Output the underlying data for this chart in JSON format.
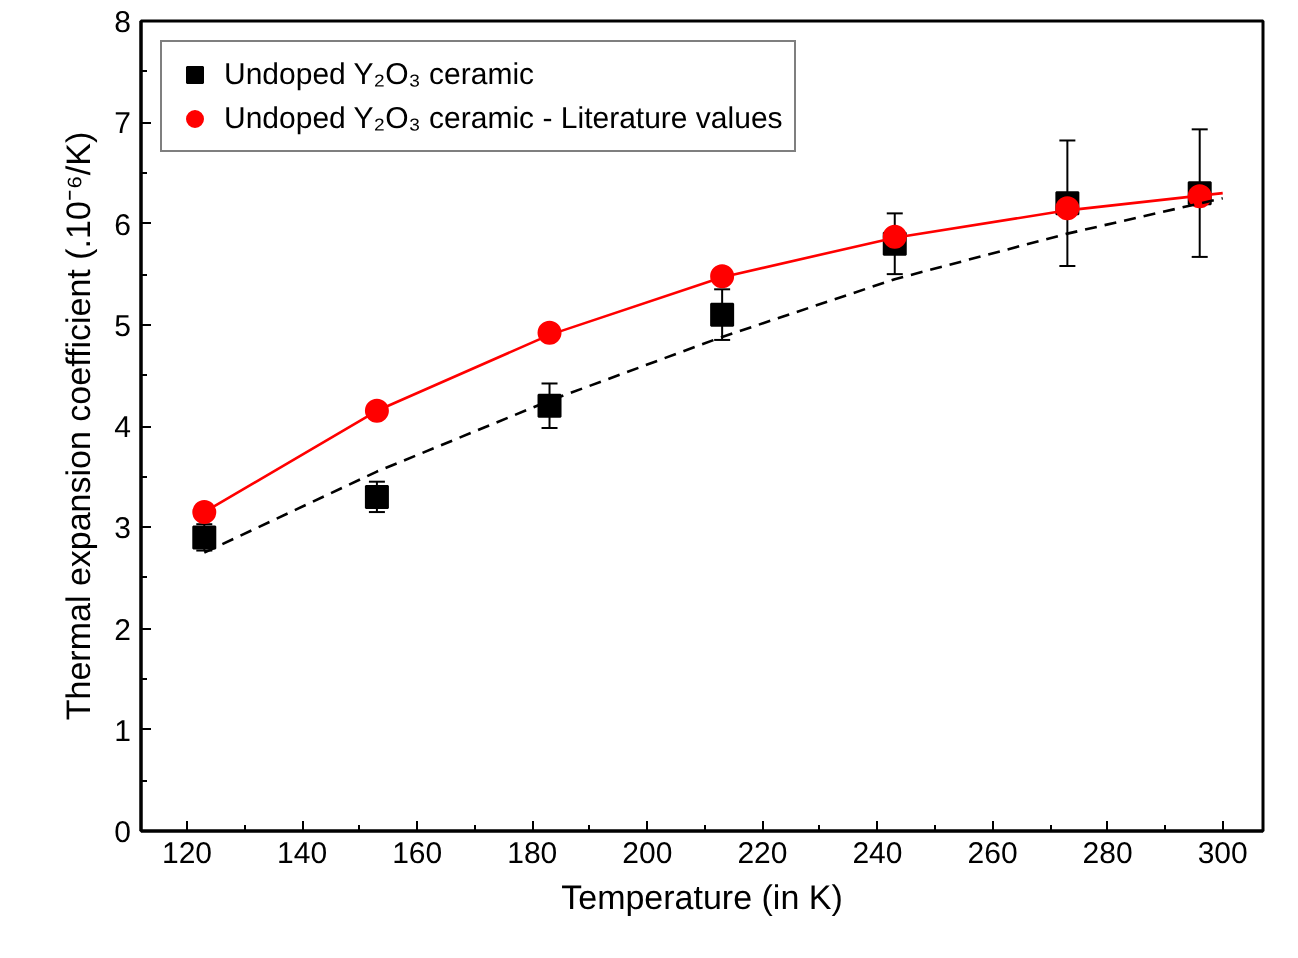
{
  "chart_data": {
    "type": "scatter",
    "xlabel": "Temperature (in K)",
    "ylabel": "Thermal expansion coefficient (.10⁻⁶/K)",
    "xlim": [
      112,
      307
    ],
    "ylim": [
      0,
      8
    ],
    "xticks": [
      120,
      140,
      160,
      180,
      200,
      220,
      240,
      260,
      280,
      300
    ],
    "yticks": [
      0,
      1,
      2,
      3,
      4,
      5,
      6,
      7,
      8
    ],
    "grid": false,
    "legend": "top left",
    "series": [
      {
        "name": "Undoped Y₂O₃ ceramic",
        "marker": "square",
        "color": "#000000",
        "x": [
          123,
          153,
          183,
          213,
          243,
          273,
          296
        ],
        "values": [
          2.9,
          3.3,
          4.2,
          5.1,
          5.8,
          6.2,
          6.3
        ],
        "errors": [
          0.13,
          0.15,
          0.22,
          0.25,
          0.3,
          0.62,
          0.63
        ]
      },
      {
        "name": "Undoped Y₂O₃ ceramic - Literature values",
        "marker": "circle",
        "color": "#ff0000",
        "x": [
          123,
          153,
          183,
          213,
          243,
          273,
          296
        ],
        "values": [
          3.15,
          4.15,
          4.92,
          5.48,
          5.87,
          6.15,
          6.27
        ]
      },
      {
        "type": "line",
        "line_style": "dashed",
        "color": "#000000",
        "x": [
          123,
          153,
          183,
          213,
          243,
          273,
          300
        ],
        "values": [
          2.75,
          3.55,
          4.25,
          4.88,
          5.45,
          5.9,
          6.25
        ]
      },
      {
        "type": "line",
        "line_style": "solid",
        "color": "#ff0000",
        "x": [
          123,
          153,
          183,
          213,
          243,
          273,
          300
        ],
        "values": [
          3.15,
          4.15,
          4.9,
          5.47,
          5.86,
          6.13,
          6.3
        ]
      }
    ]
  }
}
